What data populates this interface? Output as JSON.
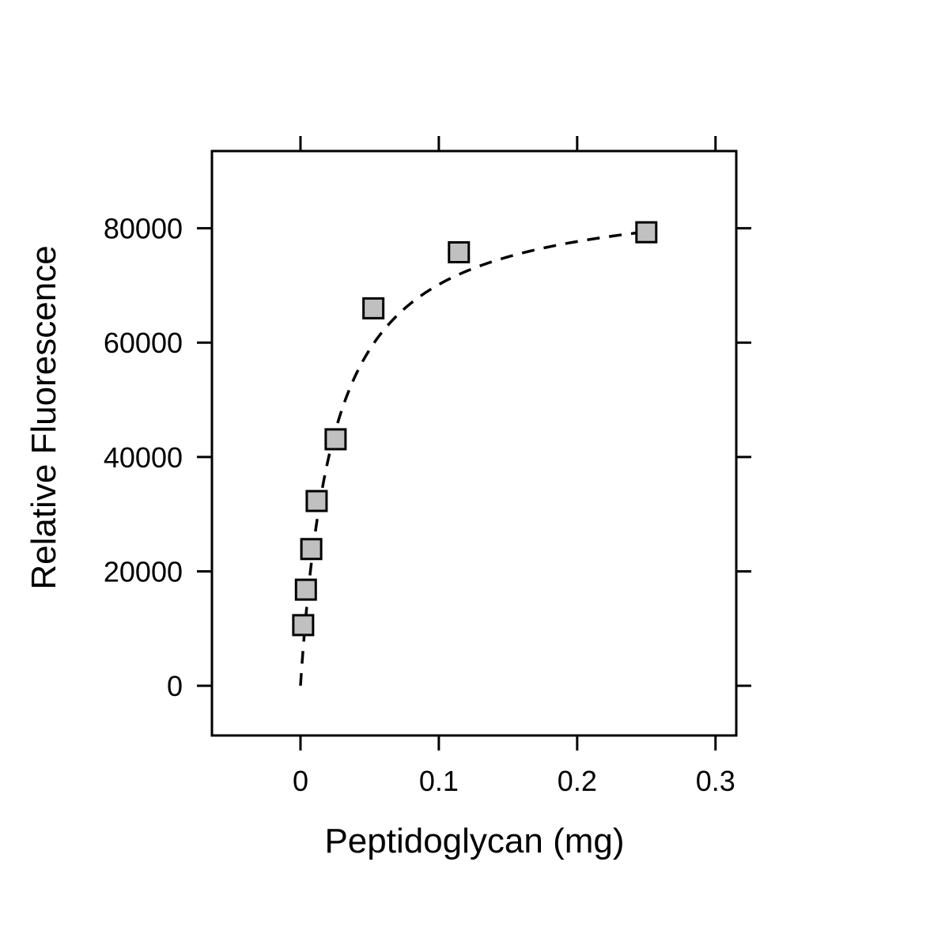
{
  "chart_data": {
    "type": "scatter",
    "title": "",
    "xlabel": "Peptidoglycan (mg)",
    "ylabel": "Relative Fluorescence",
    "xlim": [
      -0.064,
      0.315
    ],
    "ylim": [
      -8700,
      93500
    ],
    "x_ticks": [
      0,
      0.1,
      0.2,
      0.3
    ],
    "x_tick_labels": [
      "0",
      "0.1",
      "0.2",
      "0.3"
    ],
    "y_ticks": [
      0,
      20000,
      40000,
      60000,
      80000
    ],
    "y_tick_labels": [
      "0",
      "20000",
      "40000",
      "60000",
      "80000"
    ],
    "grid": false,
    "series": [
      {
        "type": "scatter",
        "marker": "square",
        "marker_color": "#c0c0c0",
        "x": [
          0.00195,
          0.0039,
          0.0078,
          0.0117,
          0.0254,
          0.0527,
          0.1145,
          0.25
        ],
        "y": [
          10600,
          16800,
          23900,
          32300,
          43100,
          66000,
          75800,
          79300
        ]
      },
      {
        "type": "line",
        "style": "dashed",
        "model": "hyperbolic",
        "ymax": 87000,
        "kd": 0.024
      }
    ]
  }
}
